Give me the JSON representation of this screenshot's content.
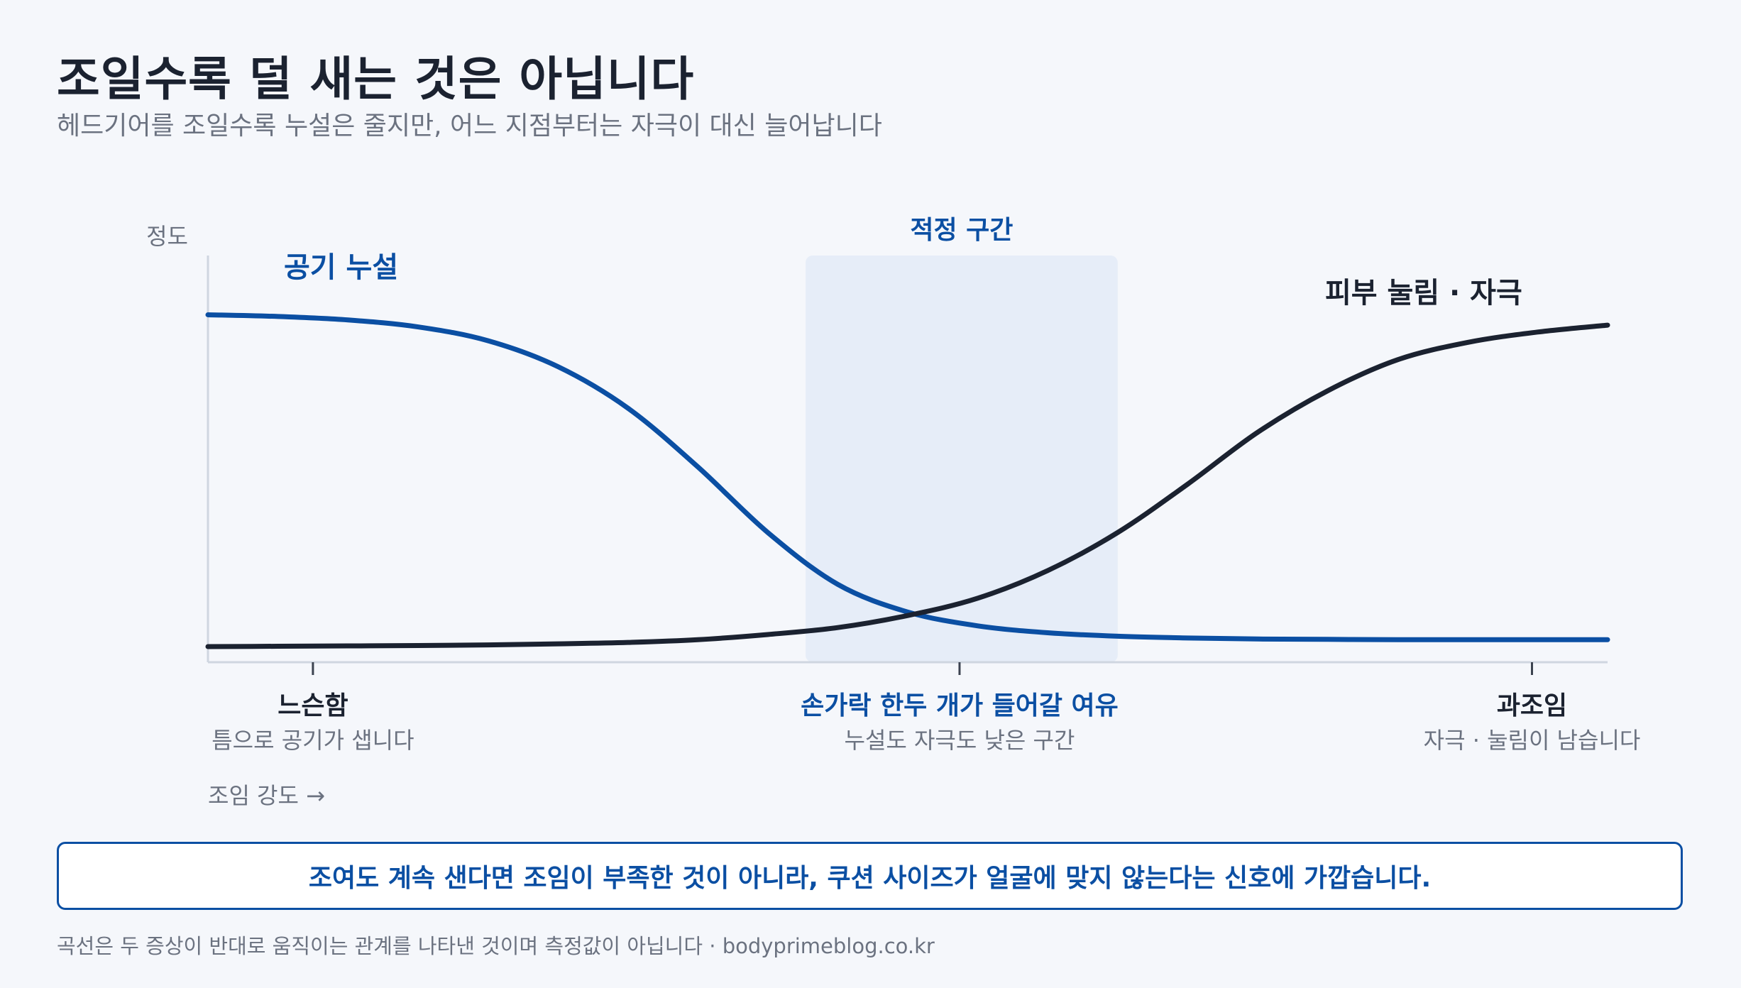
{
  "title": "조일수록 덜 새는 것은 아닙니다",
  "subtitle": "헤드기어를 조일수록 누설은 줄지만, 어느 지점부터는 자극이 대신 늘어납니다",
  "chart_data": {
    "type": "line",
    "ylabel": "정도",
    "xlabel": "조임 강도 →",
    "zone": {
      "label": "적정 구간",
      "from": 0.427,
      "to": 0.65
    },
    "ticks": [
      {
        "x": 0.075,
        "label": "느슨함",
        "sub": "틈으로 공기가 샙니다",
        "accent": false
      },
      {
        "x": 0.537,
        "label": "손가락 한두 개가 들어갈 여유",
        "sub": "누설도 자극도 낮은 구간",
        "accent": true
      },
      {
        "x": 0.946,
        "label": "과조임",
        "sub": "자극 · 눌림이 남습니다",
        "accent": false
      }
    ],
    "series": [
      {
        "name": "공기 누설",
        "color": "#0b4fa3",
        "x": [
          0,
          0.05,
          0.1,
          0.15,
          0.2,
          0.25,
          0.3,
          0.35,
          0.4,
          0.45,
          0.5,
          0.55,
          0.6,
          0.65,
          0.7,
          0.75,
          0.8,
          0.85,
          0.9,
          0.95,
          1.0
        ],
        "y": [
          0.96,
          0.955,
          0.945,
          0.925,
          0.885,
          0.81,
          0.69,
          0.52,
          0.33,
          0.18,
          0.1,
          0.06,
          0.04,
          0.03,
          0.025,
          0.022,
          0.021,
          0.02,
          0.02,
          0.02,
          0.02
        ]
      },
      {
        "name": "피부 눌림 · 자극",
        "color": "#1b2230",
        "x": [
          0,
          0.05,
          0.1,
          0.15,
          0.2,
          0.25,
          0.3,
          0.35,
          0.4,
          0.45,
          0.5,
          0.55,
          0.6,
          0.65,
          0.7,
          0.75,
          0.8,
          0.85,
          0.9,
          0.95,
          1.0
        ],
        "y": [
          0.0,
          0.001,
          0.002,
          0.003,
          0.005,
          0.008,
          0.012,
          0.02,
          0.035,
          0.055,
          0.09,
          0.14,
          0.22,
          0.33,
          0.47,
          0.62,
          0.74,
          0.83,
          0.88,
          0.91,
          0.93
        ]
      }
    ]
  },
  "callout": "조여도 계속 샌다면 조임이 부족한 것이 아니라, 쿠션 사이즈가 얼굴에 맞지 않는다는 신호에 가깝습니다.",
  "footnote": "곡선은 두 증상이 반대로 움직이는 관계를 나타낸 것이며 측정값이 아닙니다 · bodyprimeblog.co.kr"
}
